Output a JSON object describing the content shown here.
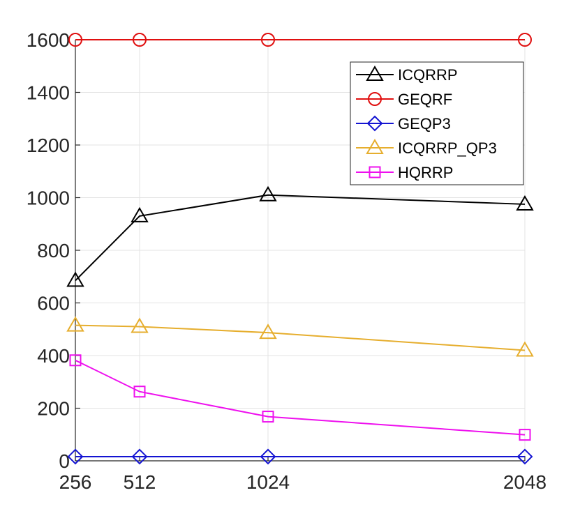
{
  "chart_data": {
    "type": "line",
    "title": "",
    "xlabel": "",
    "ylabel": "",
    "x": [
      256,
      512,
      1024,
      2048
    ],
    "x_tick_labels": [
      "256",
      "512",
      "1024",
      "2048"
    ],
    "xlim": [
      256,
      2048
    ],
    "ylim": [
      0,
      1600
    ],
    "y_ticks": [
      0,
      200,
      400,
      600,
      800,
      1000,
      1200,
      1400,
      1600
    ],
    "y_tick_labels": [
      "0",
      "200",
      "400",
      "600",
      "800",
      "1000",
      "1200",
      "1400",
      "1600"
    ],
    "grid": true,
    "legend_position": "top-right",
    "series": [
      {
        "name": "ICQRRP",
        "color": "#000000",
        "marker": "triangle",
        "values": [
          685,
          930,
          1010,
          975
        ]
      },
      {
        "name": "GEQRF",
        "color": "#e01010",
        "marker": "circle",
        "values": [
          1600,
          1600,
          1600,
          1600
        ]
      },
      {
        "name": "GEQP3",
        "color": "#1414d2",
        "marker": "diamond",
        "values": [
          16,
          16,
          16,
          16
        ]
      },
      {
        "name": "ICQRRP_QP3",
        "color": "#e6ae2e",
        "marker": "triangle",
        "values": [
          515,
          510,
          487,
          420
        ]
      },
      {
        "name": "HQRRP",
        "color": "#ee10ee",
        "marker": "square",
        "values": [
          382,
          263,
          168,
          99
        ]
      }
    ]
  }
}
